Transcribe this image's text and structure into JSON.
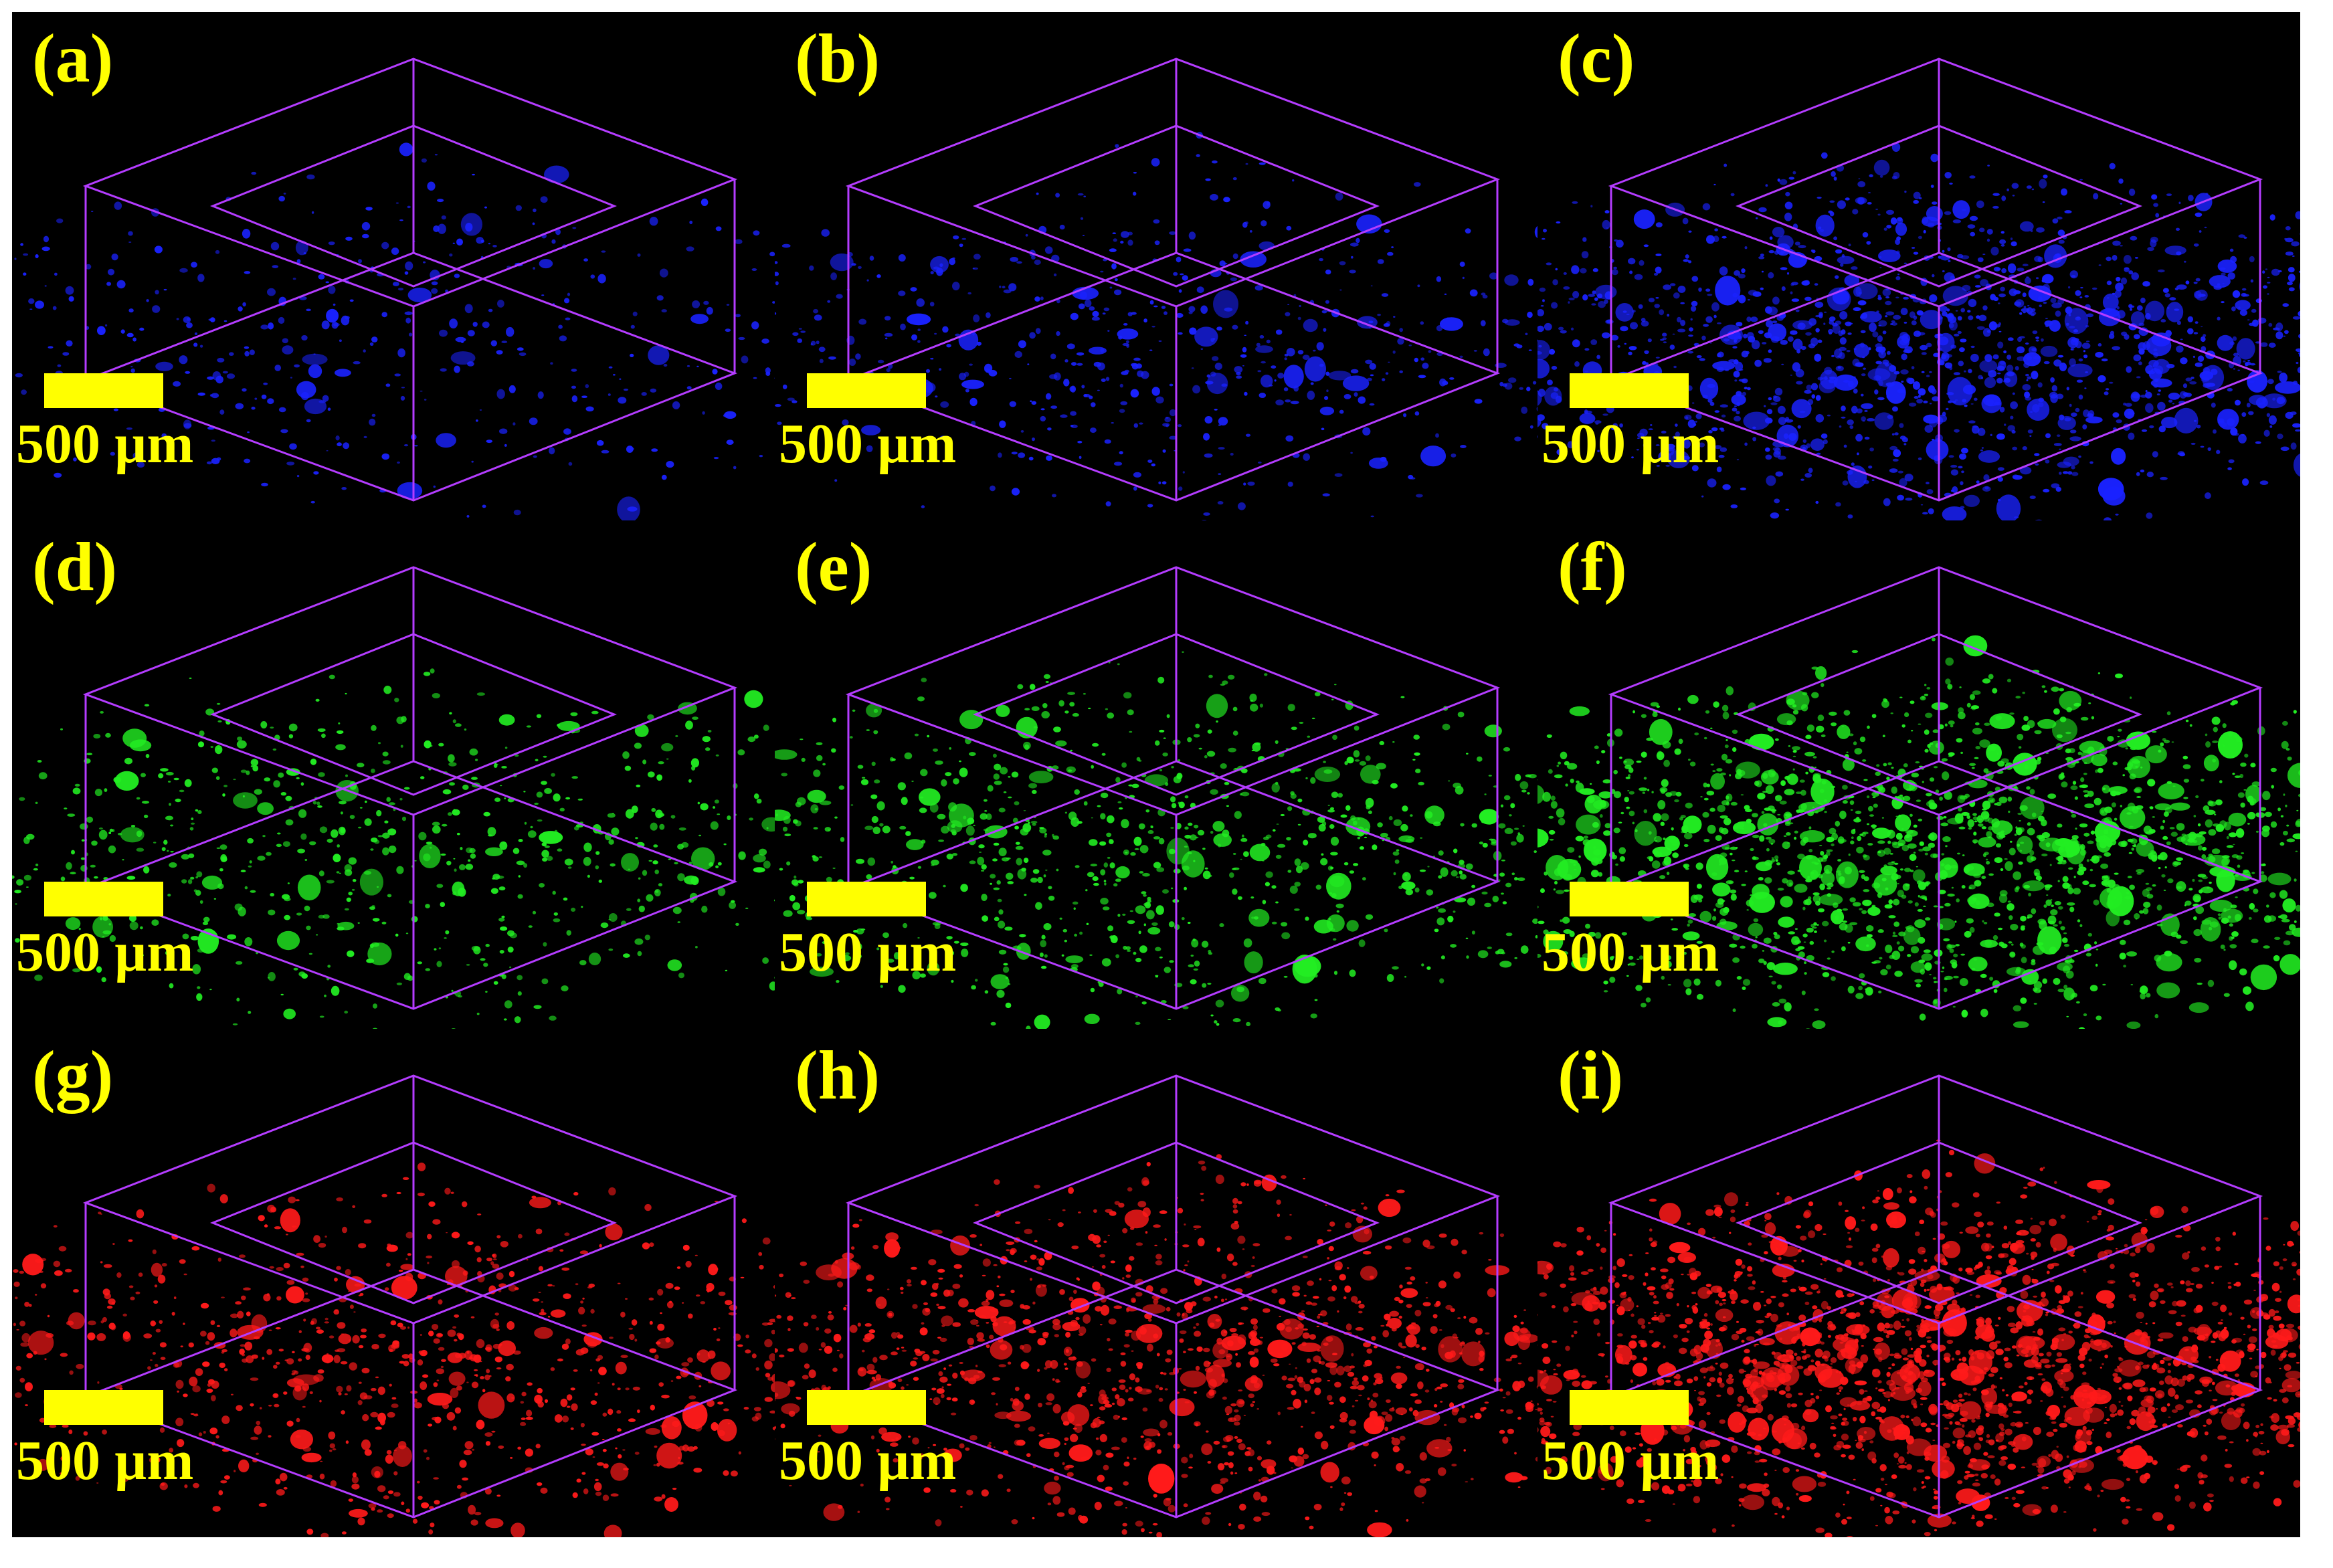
{
  "colors": {
    "blue": "#1a22ff",
    "green": "#22ee22",
    "red": "#ff1a1a",
    "box": "#b43cff",
    "label": "#FFFF00",
    "background": "#000000"
  },
  "panels": [
    {
      "label": "(a)",
      "scale": "500 µm",
      "channel": "blue",
      "fill_level": 0.06
    },
    {
      "label": "(b)",
      "scale": "500 µm",
      "channel": "blue",
      "fill_level": 0.12
    },
    {
      "label": "(c)",
      "scale": "500 µm",
      "channel": "blue",
      "fill_level": 0.55
    },
    {
      "label": "(d)",
      "scale": "500 µm",
      "channel": "green",
      "fill_level": 0.18
    },
    {
      "label": "(e)",
      "scale": "500 µm",
      "channel": "green",
      "fill_level": 0.28
    },
    {
      "label": "(f)",
      "scale": "500 µm",
      "channel": "green",
      "fill_level": 0.65
    },
    {
      "label": "(g)",
      "scale": "500 µm",
      "channel": "red",
      "fill_level": 0.25
    },
    {
      "label": "(h)",
      "scale": "500 µm",
      "channel": "red",
      "fill_level": 0.38
    },
    {
      "label": "(i)",
      "scale": "500 µm",
      "channel": "red",
      "fill_level": 0.75
    }
  ]
}
